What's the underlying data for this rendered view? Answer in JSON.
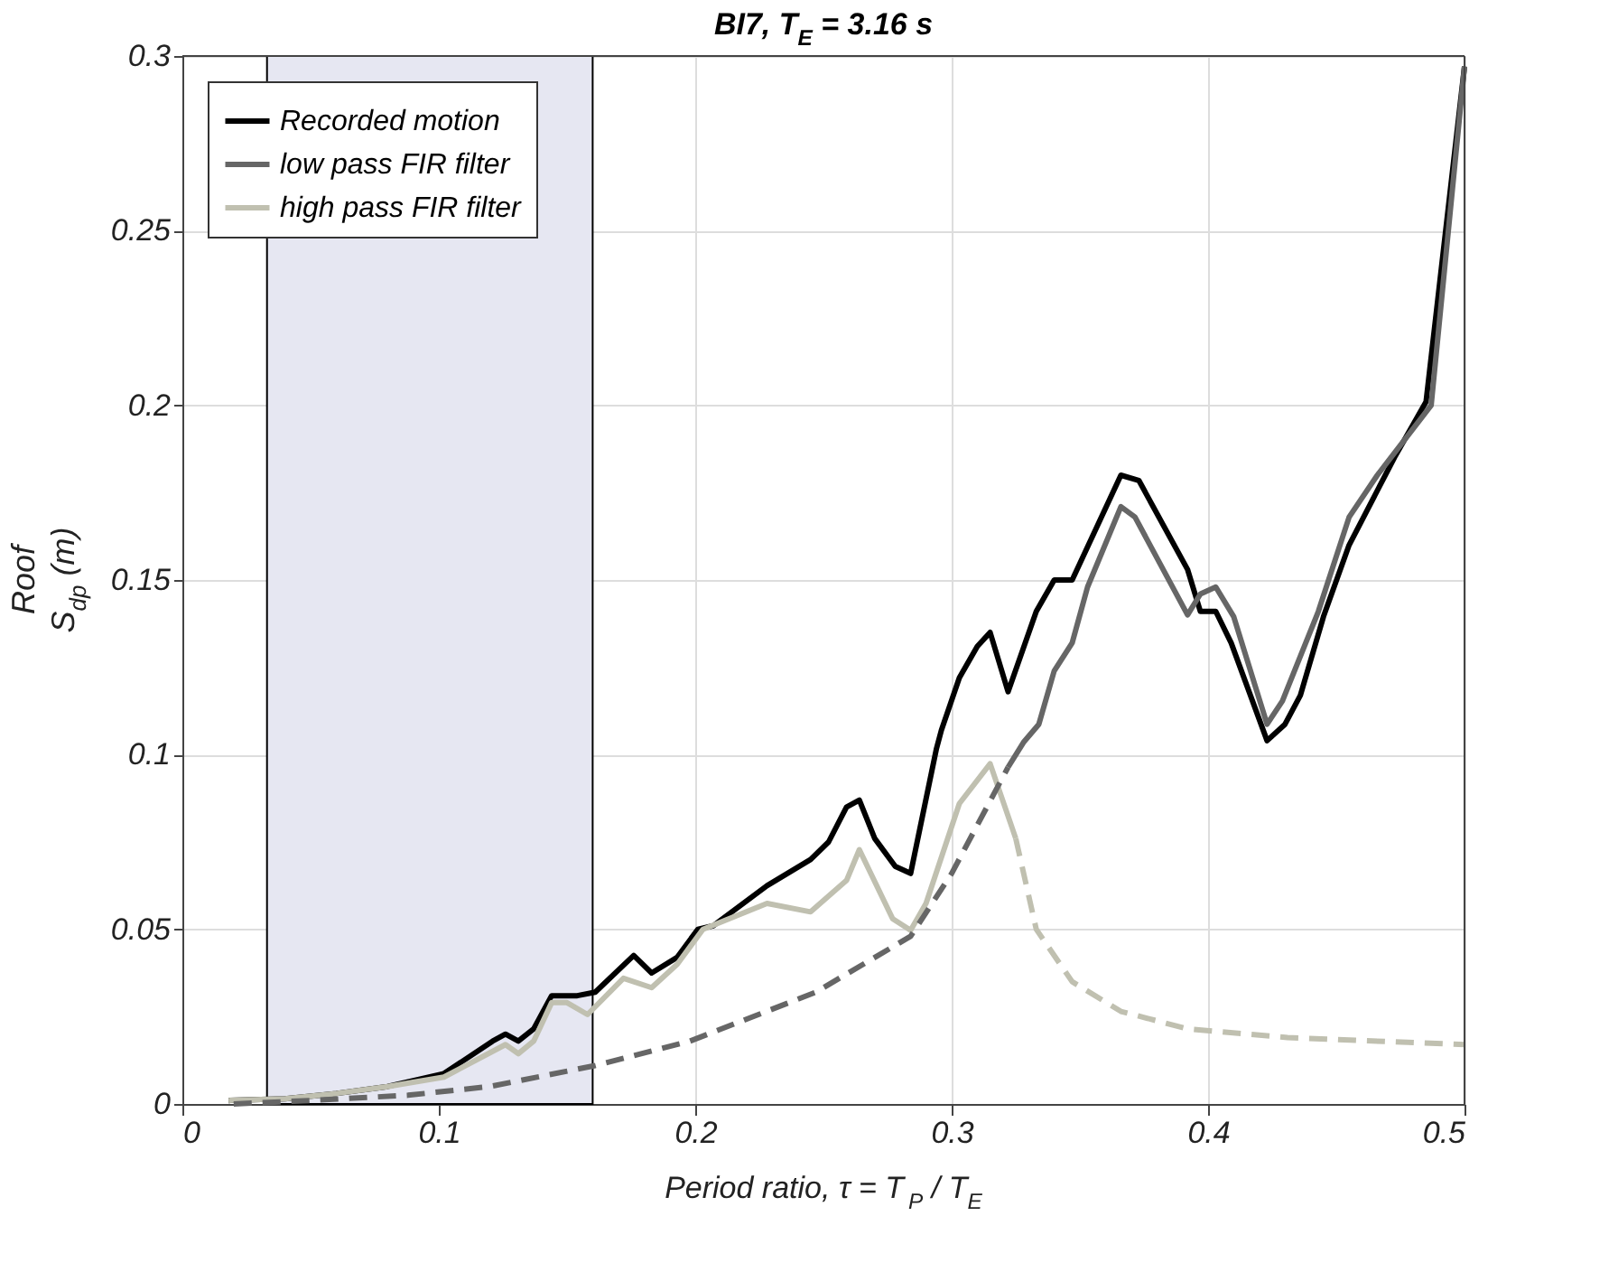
{
  "chart_data": {
    "type": "line",
    "title": "BI7, T$_{E}$ = 3.16 s",
    "xlabel": "Period ratio, τ = T$_{P}$ / T$_{E}$",
    "ylabel": "Roof\nS$_{dp}$ (m)",
    "xlim": [
      0,
      0.5
    ],
    "xticks": [
      0,
      0.1,
      0.2,
      0.3,
      0.4,
      0.5
    ],
    "ylim": [
      0,
      0.3
    ],
    "yticks": [
      0,
      0.05,
      0.1,
      0.15,
      0.2,
      0.25,
      0.3
    ],
    "grid": true,
    "legend": "top left",
    "marker": "none",
    "bands": [
      {
        "axis": "x",
        "from": 0.033,
        "to": 0.16,
        "color": "#e6e7f2"
      }
    ],
    "series": [
      {
        "name": "Recorded motion",
        "color": "#000000",
        "line_style": "solid",
        "x": [
          0.018,
          0.04,
          0.06,
          0.08,
          0.102,
          0.121,
          0.126,
          0.131,
          0.137,
          0.144,
          0.154,
          0.161,
          0.176,
          0.183,
          0.193,
          0.201,
          0.207,
          0.228,
          0.245,
          0.252,
          0.259,
          0.264,
          0.27,
          0.278,
          0.284,
          0.294,
          0.296,
          0.303,
          0.31,
          0.315,
          0.322,
          0.333,
          0.34,
          0.347,
          0.366,
          0.373,
          0.392,
          0.397,
          0.403,
          0.409,
          0.423,
          0.43,
          0.436,
          0.445,
          0.455,
          0.473,
          0.485,
          0.5
        ],
        "values": [
          0.001,
          0.0015,
          0.003,
          0.005,
          0.0087,
          0.018,
          0.02,
          0.018,
          0.0215,
          0.031,
          0.031,
          0.032,
          0.0425,
          0.0375,
          0.042,
          0.05,
          0.051,
          0.0625,
          0.07,
          0.075,
          0.085,
          0.087,
          0.076,
          0.068,
          0.066,
          0.1015,
          0.107,
          0.122,
          0.131,
          0.135,
          0.118,
          0.141,
          0.15,
          0.15,
          0.18,
          0.1785,
          0.153,
          0.141,
          0.141,
          0.132,
          0.104,
          0.1087,
          0.117,
          0.1395,
          0.16,
          0.1855,
          0.201,
          0.297
        ]
      },
      {
        "name": "low pass FIR filter",
        "color": "#666666",
        "line_style": "solid",
        "x": [
          0.322,
          0.328,
          0.334,
          0.34,
          0.347,
          0.353,
          0.366,
          0.3715,
          0.392,
          0.397,
          0.403,
          0.41,
          0.423,
          0.429,
          0.443,
          0.455,
          0.466,
          0.487,
          0.5
        ],
        "values": [
          0.0964,
          0.1035,
          0.1087,
          0.124,
          0.132,
          0.148,
          0.171,
          0.168,
          0.14,
          0.146,
          0.148,
          0.1395,
          0.1087,
          0.1154,
          0.141,
          0.168,
          0.18,
          0.2,
          0.297
        ]
      },
      {
        "name": "high pass FIR filter",
        "color": "#c0c0b0",
        "line_style": "solid",
        "x": [
          0.018,
          0.04,
          0.06,
          0.08,
          0.102,
          0.126,
          0.131,
          0.137,
          0.144,
          0.15,
          0.158,
          0.172,
          0.183,
          0.193,
          0.203,
          0.228,
          0.245,
          0.259,
          0.264,
          0.277,
          0.284,
          0.29,
          0.303,
          0.315,
          0.325
        ],
        "values": [
          0.001,
          0.0015,
          0.003,
          0.005,
          0.0077,
          0.017,
          0.0144,
          0.018,
          0.029,
          0.029,
          0.0256,
          0.036,
          0.0333,
          0.04,
          0.05,
          0.0574,
          0.055,
          0.064,
          0.0728,
          0.053,
          0.0497,
          0.0574,
          0.086,
          0.0974,
          0.076
        ]
      },
      {
        "color": "#666666",
        "line_style": "dashed",
        "x": [
          0.02,
          0.05,
          0.088,
          0.12,
          0.161,
          0.198,
          0.247,
          0.284,
          0.3,
          0.322
        ],
        "values": [
          0,
          0.001,
          0.0025,
          0.005,
          0.011,
          0.018,
          0.032,
          0.048,
          0.066,
          0.0964
        ]
      },
      {
        "color": "#c0c0b0",
        "line_style": "dashed",
        "x": [
          0.325,
          0.333,
          0.347,
          0.366,
          0.392,
          0.431,
          0.5
        ],
        "values": [
          0.076,
          0.05,
          0.035,
          0.0265,
          0.0215,
          0.019,
          0.017
        ]
      }
    ]
  }
}
